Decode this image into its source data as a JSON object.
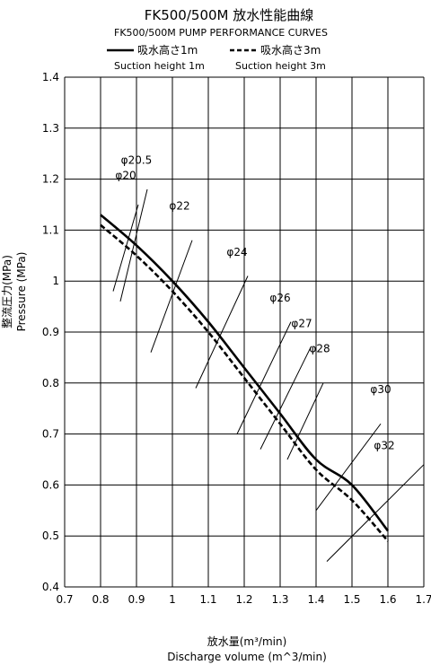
{
  "chart_data": {
    "type": "line",
    "title": "FK500/500M 放水性能曲線",
    "subtitle": "FK500/500M PUMP PERFORMANCE CURVES",
    "legend": [
      {
        "label": "吸水高さ1m",
        "label_en": "Suction height 1m",
        "style": "solid"
      },
      {
        "label": "吸水高さ3m",
        "label_en": "Suction height 3m",
        "style": "dashed"
      }
    ],
    "xlabel": "放水量(m³/min)",
    "xlabel_en": "Discharge volume (m^3/min)",
    "ylabel": "整流圧力(MPa)",
    "ylabel_en": "Pressure (MPa)",
    "xlim": [
      0.7,
      1.7
    ],
    "ylim": [
      0.4,
      1.4
    ],
    "xticks": [
      "0.7",
      "0.8",
      "0.9",
      "1",
      "1.1",
      "1.2",
      "1.3",
      "1.4",
      "1.5",
      "1.6",
      "1.7"
    ],
    "yticks": [
      "0.4",
      "0.5",
      "0.6",
      "0.7",
      "0.8",
      "0.9",
      "1",
      "1.1",
      "1.2",
      "1.3",
      "1.4"
    ],
    "grid": true,
    "series": [
      {
        "name": "吸水高さ1m",
        "style": "solid",
        "x": [
          0.8,
          0.9,
          1.0,
          1.1,
          1.2,
          1.3,
          1.4,
          1.5,
          1.6
        ],
        "y": [
          1.13,
          1.07,
          1.0,
          0.92,
          0.83,
          0.74,
          0.65,
          0.6,
          0.51
        ]
      },
      {
        "name": "吸水高さ3m",
        "style": "dashed",
        "x": [
          0.8,
          0.9,
          1.0,
          1.1,
          1.2,
          1.3,
          1.4,
          1.5,
          1.6
        ],
        "y": [
          1.11,
          1.05,
          0.98,
          0.9,
          0.81,
          0.72,
          0.63,
          0.57,
          0.49
        ]
      }
    ],
    "nozzle_lines": [
      {
        "label": "φ20",
        "x1": 0.835,
        "y1": 0.98,
        "x2": 0.905,
        "y2": 1.15,
        "lx": 0.87,
        "ly": 1.2
      },
      {
        "label": "φ20.5",
        "x1": 0.855,
        "y1": 0.96,
        "x2": 0.93,
        "y2": 1.18,
        "lx": 0.9,
        "ly": 1.23
      },
      {
        "label": "φ22",
        "x1": 0.94,
        "y1": 0.86,
        "x2": 1.055,
        "y2": 1.08,
        "lx": 1.02,
        "ly": 1.14
      },
      {
        "label": "φ24",
        "x1": 1.065,
        "y1": 0.79,
        "x2": 1.21,
        "y2": 1.01,
        "lx": 1.18,
        "ly": 1.05
      },
      {
        "label": "φ26",
        "x1": 1.18,
        "y1": 0.7,
        "x2": 1.33,
        "y2": 0.92,
        "lx": 1.3,
        "ly": 0.96
      },
      {
        "label": "φ27",
        "x1": 1.245,
        "y1": 0.67,
        "x2": 1.385,
        "y2": 0.87,
        "lx": 1.36,
        "ly": 0.91
      },
      {
        "label": "φ28",
        "x1": 1.32,
        "y1": 0.65,
        "x2": 1.42,
        "y2": 0.8,
        "lx": 1.41,
        "ly": 0.86
      },
      {
        "label": "φ30",
        "x1": 1.4,
        "y1": 0.55,
        "x2": 1.58,
        "y2": 0.72,
        "lx": 1.58,
        "ly": 0.78
      },
      {
        "label": "φ32",
        "x1": 1.43,
        "y1": 0.45,
        "x2": 1.7,
        "y2": 0.64,
        "lx": 1.59,
        "ly": 0.67
      }
    ]
  }
}
